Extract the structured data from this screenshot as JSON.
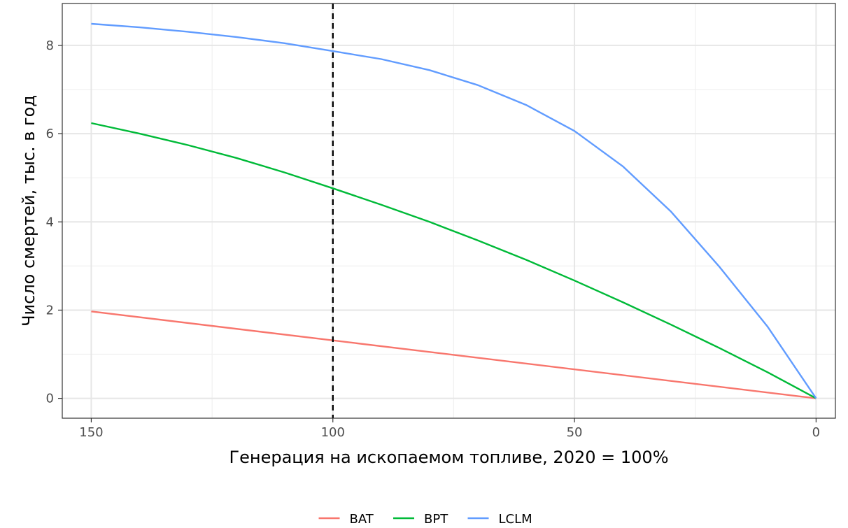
{
  "chart_data": {
    "type": "line",
    "title": "",
    "xlabel": "Генерация на ископаемом топливе, 2020 = 100%",
    "ylabel": "Число смертей, тыс. в год",
    "xlim": [
      156,
      -4
    ],
    "ylim": [
      -0.45,
      8.95
    ],
    "x_reversed": true,
    "x_ticks": [
      150,
      100,
      50,
      0
    ],
    "x_tick_labels": [
      "150",
      "100",
      "50",
      "0"
    ],
    "x_minor_ticks": [
      125,
      75,
      25
    ],
    "y_ticks": [
      0,
      2,
      4,
      6,
      8
    ],
    "y_tick_labels": [
      "0",
      "2",
      "4",
      "6",
      "8"
    ],
    "y_minor_ticks": [
      1,
      3,
      5,
      7
    ],
    "grid": true,
    "legend_position": "bottom",
    "reference_line": {
      "axis": "x",
      "value": 100,
      "style": "dashed",
      "color": "#000000"
    },
    "series": [
      {
        "name": "BAT",
        "color": "#F8766D",
        "x": [
          150,
          0
        ],
        "y": [
          1.97,
          0.0
        ]
      },
      {
        "name": "BPT",
        "color": "#00BA38",
        "x": [
          150,
          140,
          130,
          120,
          110,
          100,
          90,
          80,
          70,
          60,
          50,
          40,
          30,
          20,
          10,
          0
        ],
        "y": [
          6.24,
          6.0,
          5.74,
          5.45,
          5.12,
          4.76,
          4.39,
          4.0,
          3.58,
          3.14,
          2.67,
          2.18,
          1.67,
          1.14,
          0.59,
          0.0
        ]
      },
      {
        "name": "LCLM",
        "color": "#619CFF",
        "x": [
          150,
          140,
          130,
          120,
          110,
          100,
          90,
          80,
          70,
          60,
          50,
          40,
          30,
          20,
          10,
          0
        ],
        "y": [
          8.49,
          8.41,
          8.31,
          8.19,
          8.05,
          7.87,
          7.69,
          7.44,
          7.1,
          6.65,
          6.06,
          5.26,
          4.23,
          2.98,
          1.62,
          0.0
        ]
      }
    ]
  }
}
